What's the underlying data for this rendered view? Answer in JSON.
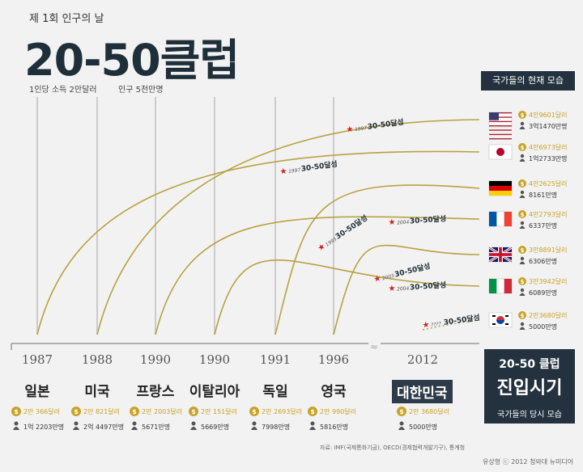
{
  "header": {
    "subtitle": "제 1회 인구의 날",
    "title": "20-50클럽",
    "condition_income": "1인당 소득 2만달러",
    "condition_population": "인구 5천만명"
  },
  "now_panel": {
    "title": "국가들의 현재 모습"
  },
  "club_box": {
    "line1": "20-50 클럽",
    "line2": "진입시기",
    "line3": "국가들의 당시 모습"
  },
  "source": "자료: IMF(국제통화기금), OECD(경제협력개발기구), 통계청",
  "credit": "유상형 ⓒ 2012 청와대 뉴미디어",
  "colors": {
    "curve": "#b8a242",
    "grid": "#cccccc",
    "star": "#cc2222",
    "dark": "#23323e",
    "coin": "#c9a227",
    "income_text": "#c9a227"
  },
  "chart_data": {
    "type": "line",
    "title": "",
    "x_axis_breaks": [
      "1996",
      "2012"
    ],
    "series": [
      {
        "name": "일본",
        "entry_year": "1987",
        "join_label_year": "1997",
        "join_label": "30-50달성",
        "income_then": "2만 366달러",
        "pop_then": "1억 2203만명",
        "income_now": "4만6973달러",
        "pop_now": "1억2733만명",
        "flag": "japan"
      },
      {
        "name": "미국",
        "entry_year": "1988",
        "join_label_year": "1997",
        "join_label": "30-50달성",
        "income_then": "2만 821달러",
        "pop_then": "2억 4497만명",
        "income_now": "4만9601달러",
        "pop_now": "3억1470만명",
        "flag": "usa"
      },
      {
        "name": "프랑스",
        "entry_year": "1990",
        "join_label_year": "2004",
        "join_label": "30-50달성",
        "income_then": "2만 2003달러",
        "pop_then": "5671만명",
        "income_now": "4만2793달러",
        "pop_now": "6337만명",
        "flag": "france"
      },
      {
        "name": "이탈리아",
        "entry_year": "1990",
        "join_label_year": "2004",
        "join_label": "30-50달성",
        "income_then": "2만 151달러",
        "pop_then": "5669만명",
        "income_now": "3만3942달러",
        "pop_now": "6089만명",
        "flag": "italy"
      },
      {
        "name": "독일",
        "entry_year": "1991",
        "join_label_year": "1995",
        "join_label": "30-50달성",
        "income_then": "2만 2693달러",
        "pop_then": "7998만명",
        "income_now": "4만2625달러",
        "pop_now": "8161만명",
        "flag": "germany"
      },
      {
        "name": "영국",
        "entry_year": "1996",
        "join_label_year": "2003",
        "join_label": "30-50달성",
        "income_then": "2만 990달러",
        "pop_then": "5816만명",
        "income_now": "3만8891달러",
        "pop_now": "6306만명",
        "flag": "uk"
      },
      {
        "name": "대한민국",
        "entry_year": "2012",
        "join_label_year": "????",
        "join_label": "30-50달성",
        "income_then": "2만 3680달러",
        "pop_then": "5000만명",
        "income_now": "2만3680달러",
        "pop_now": "5000만명",
        "flag": "korea",
        "highlight": true
      }
    ],
    "now_list_order": [
      "usa",
      "japan",
      "germany",
      "france",
      "uk",
      "italy",
      "korea"
    ]
  }
}
